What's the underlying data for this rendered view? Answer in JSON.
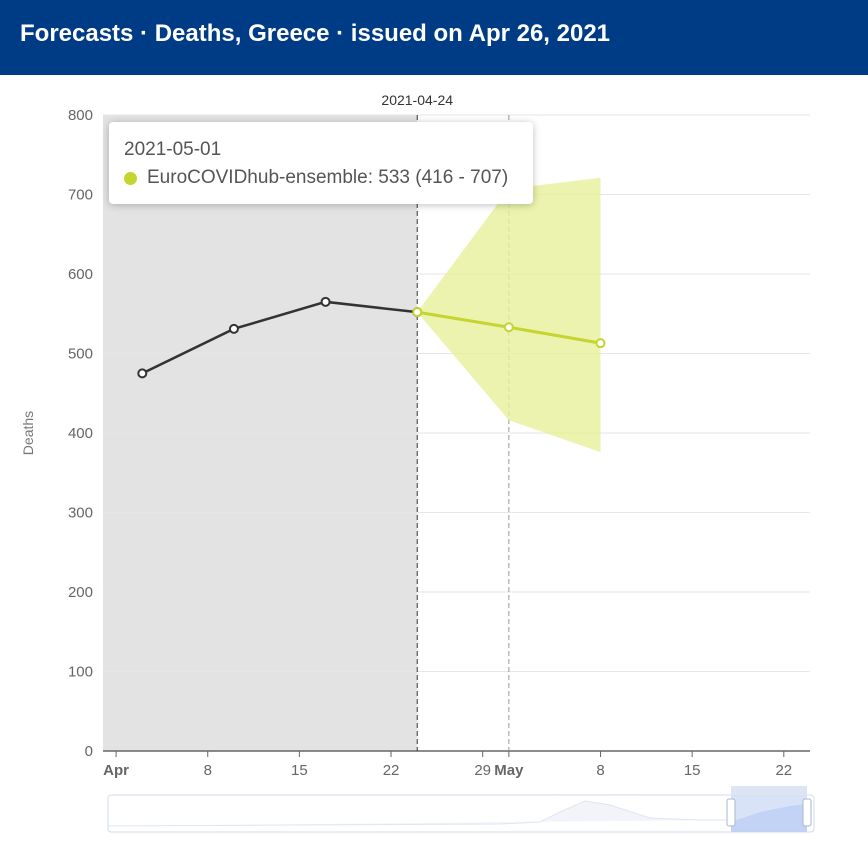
{
  "header": {
    "title": "Forecasts · Deaths, Greece  · issued on Apr 26, 2021"
  },
  "chart_data": {
    "type": "line",
    "ylabel": "Deaths",
    "ylim": [
      0,
      800
    ],
    "yticks": [
      0,
      100,
      200,
      300,
      400,
      500,
      600,
      700,
      800
    ],
    "xlim": [
      "2021-03-31",
      "2021-05-24"
    ],
    "xticks": [
      {
        "date": "2021-04-01",
        "label": "Apr",
        "bold": true
      },
      {
        "date": "2021-04-08",
        "label": "8"
      },
      {
        "date": "2021-04-15",
        "label": "15"
      },
      {
        "date": "2021-04-22",
        "label": "22"
      },
      {
        "date": "2021-04-29",
        "label": "29"
      },
      {
        "date": "2021-05-01",
        "label": "May",
        "bold": true
      },
      {
        "date": "2021-05-08",
        "label": "8"
      },
      {
        "date": "2021-05-15",
        "label": "15"
      },
      {
        "date": "2021-05-22",
        "label": "22"
      }
    ],
    "forecast_date_marker": "2021-04-24",
    "grid": true,
    "series": [
      {
        "x": [
          "2021-04-03",
          "2021-04-10",
          "2021-04-17",
          "2021-04-24"
        ],
        "values": [
          475,
          531,
          565,
          552
        ],
        "color": "#333333"
      },
      {
        "name": "EuroCOVIDhub-ensemble",
        "x": [
          "2021-04-24",
          "2021-05-01",
          "2021-05-08"
        ],
        "values": [
          552,
          533,
          513
        ],
        "lower": [
          552,
          416,
          376
        ],
        "upper": [
          552,
          707,
          721
        ],
        "color": "#c5d52f"
      }
    ],
    "tooltip": {
      "date": "2021-05-01",
      "text": "EuroCOVIDhub-ensemble: 533 (416 - 707)"
    }
  }
}
